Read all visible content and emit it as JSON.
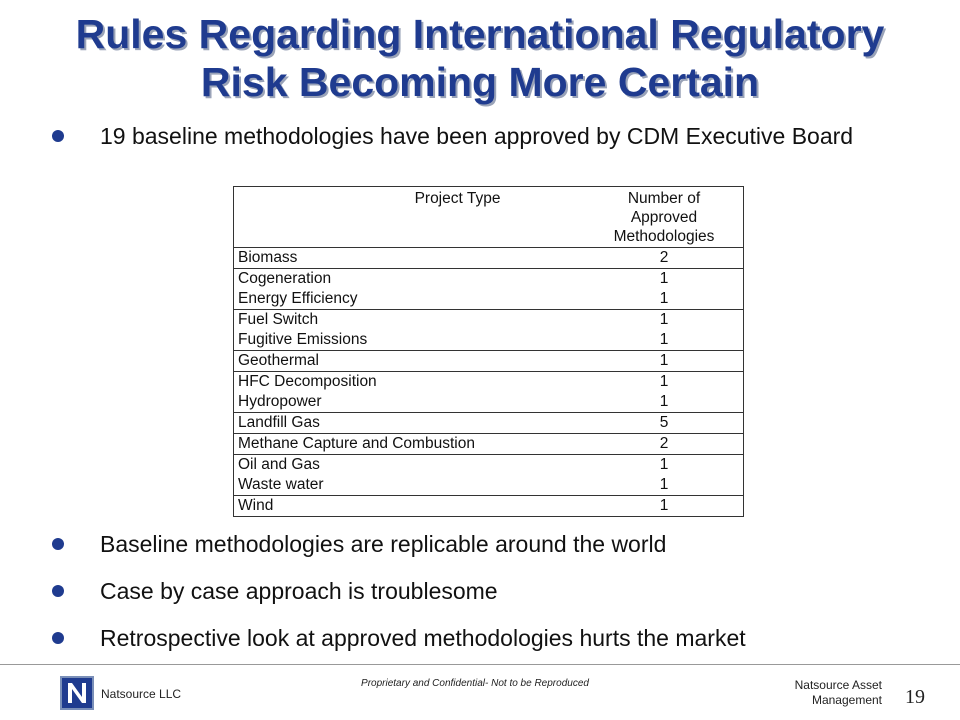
{
  "title": {
    "line1": "Rules Regarding International Regulatory",
    "line2": "Risk Becoming More Certain"
  },
  "bullets": [
    "19 baseline methodologies have been approved by CDM Executive Board",
    "Baseline methodologies are replicable around the world",
    "Case by case approach is troublesome",
    "Retrospective look at approved methodologies hurts the market"
  ],
  "table": {
    "header_project": "Project Type",
    "header_number_1": "Number of",
    "header_number_2": "Approved",
    "header_number_3": "Methodologies",
    "rows": [
      {
        "type": "Biomass",
        "count": "2"
      },
      {
        "type": "Cogeneration",
        "count": "1"
      },
      {
        "type": "Energy Efficiency",
        "count": "1"
      },
      {
        "type": "Fuel Switch",
        "count": "1"
      },
      {
        "type": "Fugitive Emissions",
        "count": "1"
      },
      {
        "type": "Geothermal",
        "count": "1"
      },
      {
        "type": "HFC Decomposition",
        "count": "1"
      },
      {
        "type": "Hydropower",
        "count": "1"
      },
      {
        "type": "Landfill Gas",
        "count": "5"
      },
      {
        "type": "Methane Capture and Combustion",
        "count": "2"
      },
      {
        "type": "Oil and Gas",
        "count": "1"
      },
      {
        "type": "Waste water",
        "count": "1"
      },
      {
        "type": "Wind",
        "count": "1"
      }
    ]
  },
  "footer": {
    "company": "Natsource LLC",
    "confidential": "Proprietary and Confidential- Not to be Reproduced",
    "right_line1": "Natsource Asset",
    "right_line2": "Management",
    "page_number": "19"
  },
  "colors": {
    "title": "#1f3b8f",
    "bullet": "#1f3b8f"
  },
  "icons": {
    "logo": "natsource-logo-icon",
    "bullet": "bullet-dot-icon"
  }
}
